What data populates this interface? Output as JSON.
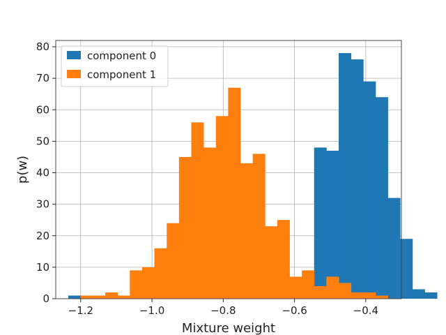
{
  "chart_data": {
    "type": "bar",
    "xlabel": "Mixture weight",
    "ylabel": "p(w)",
    "xlim": [
      -1.27,
      -0.3
    ],
    "ylim": [
      0,
      82
    ],
    "xticks": [
      -1.2,
      -1.0,
      -0.8,
      -0.6,
      -0.4
    ],
    "xtick_labels": [
      "−1.2",
      "−1.0",
      "−0.8",
      "−0.6",
      "−0.4"
    ],
    "yticks": [
      0,
      10,
      20,
      30,
      40,
      50,
      60,
      70,
      80
    ],
    "ytick_labels": [
      "0",
      "10",
      "20",
      "30",
      "40",
      "50",
      "60",
      "70",
      "80"
    ],
    "grid": true,
    "legend_position": "top-left",
    "series": [
      {
        "name": "component 0",
        "color": "#1f77b4",
        "bin_start": -1.235,
        "bin_width": 0.0345,
        "values": [
          1,
          0,
          0,
          0,
          0,
          0,
          0,
          0,
          0,
          0,
          0,
          0,
          0,
          0,
          0,
          0,
          0,
          0,
          0,
          0,
          48,
          47,
          78,
          76,
          69,
          64,
          32,
          19,
          3,
          2
        ]
      },
      {
        "name": "component 1",
        "color": "#ff7f0e",
        "bin_start": -1.2,
        "bin_width": 0.03448,
        "values": [
          1,
          1,
          2,
          1,
          9,
          10,
          16,
          24,
          45,
          56,
          48,
          58,
          67,
          43,
          46,
          23,
          25,
          7,
          9,
          4,
          7,
          5,
          2,
          2,
          1
        ]
      }
    ]
  }
}
